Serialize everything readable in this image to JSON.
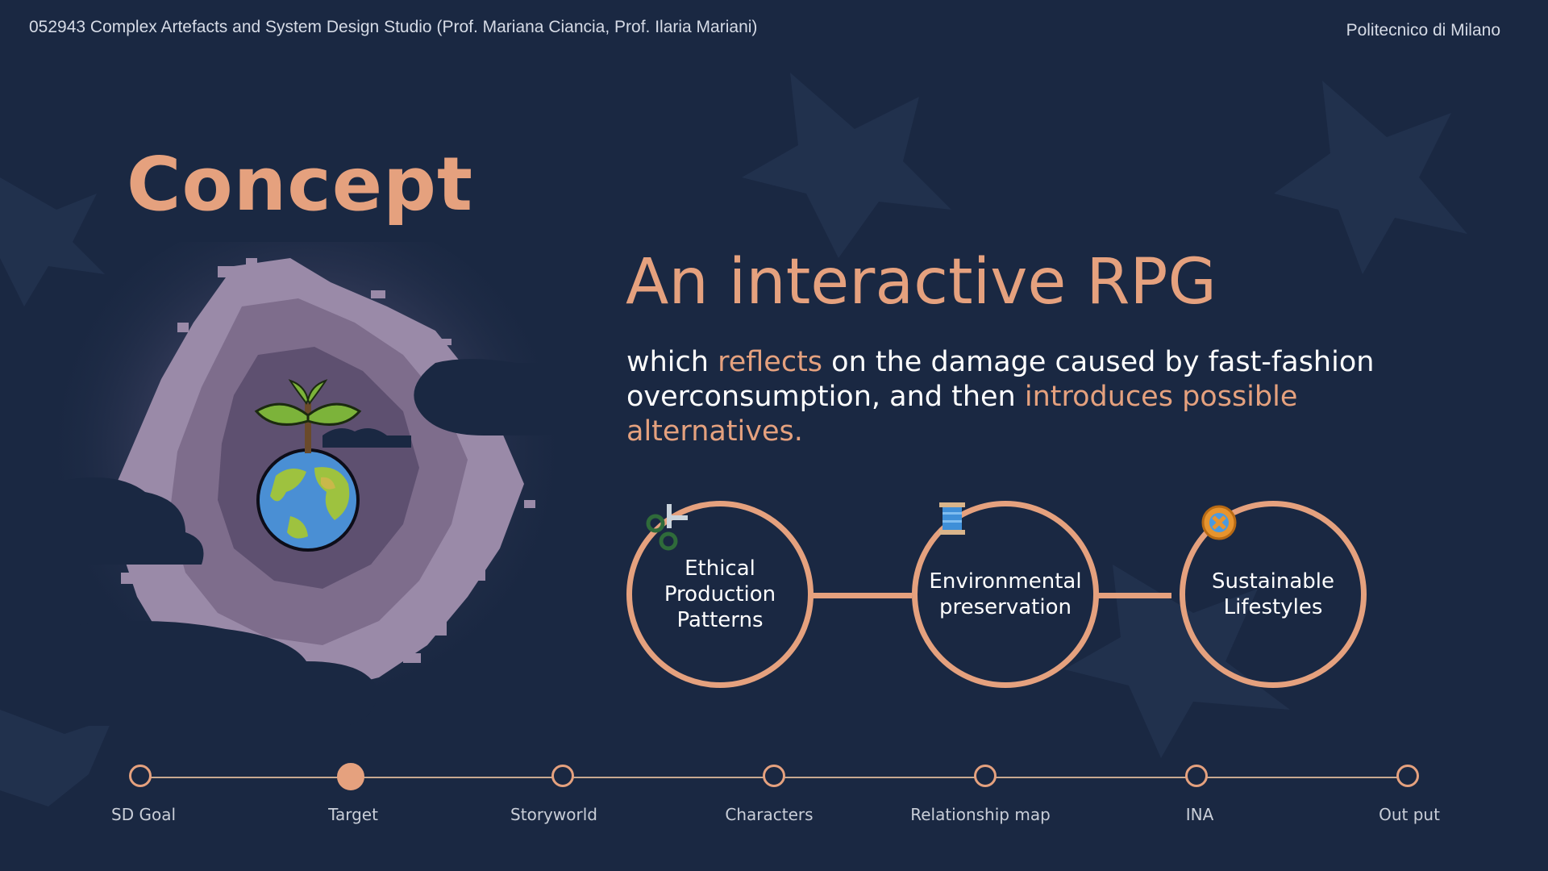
{
  "header": {
    "course": "052943 Complex Artefacts and System Design Studio (Prof. Mariana Ciancia, Prof. Ilaria Mariani)",
    "institution": "Politecnico di Milano"
  },
  "slide": {
    "title": "Concept",
    "headline": "An interactive RPG",
    "description": {
      "part1": "which ",
      "hl1": "reflects",
      "part2": " on the damage caused by fast-fashion overconsumption, and then ",
      "hl2": "introduces possible alternatives."
    }
  },
  "pillars": [
    {
      "label": "Ethical Production Patterns",
      "icon": "scissors-icon"
    },
    {
      "label": "Environmental preservation",
      "icon": "thread-spool-icon"
    },
    {
      "label": "Sustainable Lifestyles",
      "icon": "button-icon"
    }
  ],
  "timeline": {
    "steps": [
      "SD Goal",
      "Target",
      "Storyworld",
      "Characters",
      "Relationship map",
      "INA",
      "Out put"
    ],
    "active_index": 1
  },
  "colors": {
    "background": "#1a2842",
    "accent": "#e5a17e",
    "text": "#ffffff"
  }
}
